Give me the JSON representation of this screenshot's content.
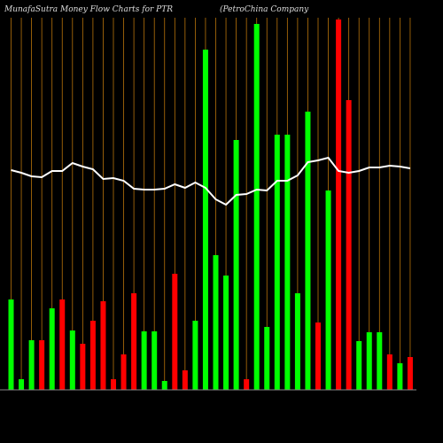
{
  "chart_data": {
    "type": "bar",
    "title": "MunafaSutra  Money Flow  Charts for PTR",
    "subtitle": "(PetroChina Company",
    "ylim": [
      0,
      440
    ],
    "grid_color": "#b8730a",
    "line_color": "#ffffff",
    "series": [
      {
        "name": "Money Flow",
        "colors": [
          "#00ff00",
          "#00ff00",
          "#00ff00",
          "#ff0000",
          "#00ff00",
          "#ff0000",
          "#00ff00",
          "#ff0000",
          "#ff0000",
          "#ff0000",
          "#ff0000",
          "#ff0000",
          "#ff0000",
          "#00ff00",
          "#00ff00",
          "#00ff00",
          "#ff0000",
          "#ff0000",
          "#00ff00",
          "#00ff00",
          "#00ff00",
          "#00ff00",
          "#00ff00",
          "#ff0000",
          "#00ff00",
          "#00ff00",
          "#00ff00",
          "#00ff00",
          "#00ff00",
          "#00ff00",
          "#ff0000",
          "#00ff00",
          "#ff0000",
          "#ff0000",
          "#00ff00",
          "#00ff00",
          "#00ff00",
          "#ff0000",
          "#00ff00",
          "#ff0000"
        ],
        "values": [
          102,
          12,
          56,
          56,
          92,
          102,
          67,
          52,
          78,
          100,
          12,
          40,
          109,
          66,
          66,
          10,
          131,
          22,
          78,
          384,
          152,
          129,
          282,
          12,
          413,
          71,
          288,
          288,
          109,
          314,
          76,
          225,
          418,
          327,
          55,
          65,
          65,
          40,
          30,
          37
        ]
      },
      {
        "name": "Price",
        "values": [
          248,
          245,
          241,
          240,
          247,
          247,
          256,
          252,
          249,
          238,
          239,
          236,
          227,
          226,
          226,
          227,
          232,
          228,
          234,
          228,
          215,
          209,
          220,
          221,
          226,
          225,
          236,
          236,
          242,
          257,
          259,
          262,
          247,
          245,
          247,
          251,
          251,
          253,
          252,
          250
        ]
      }
    ]
  }
}
